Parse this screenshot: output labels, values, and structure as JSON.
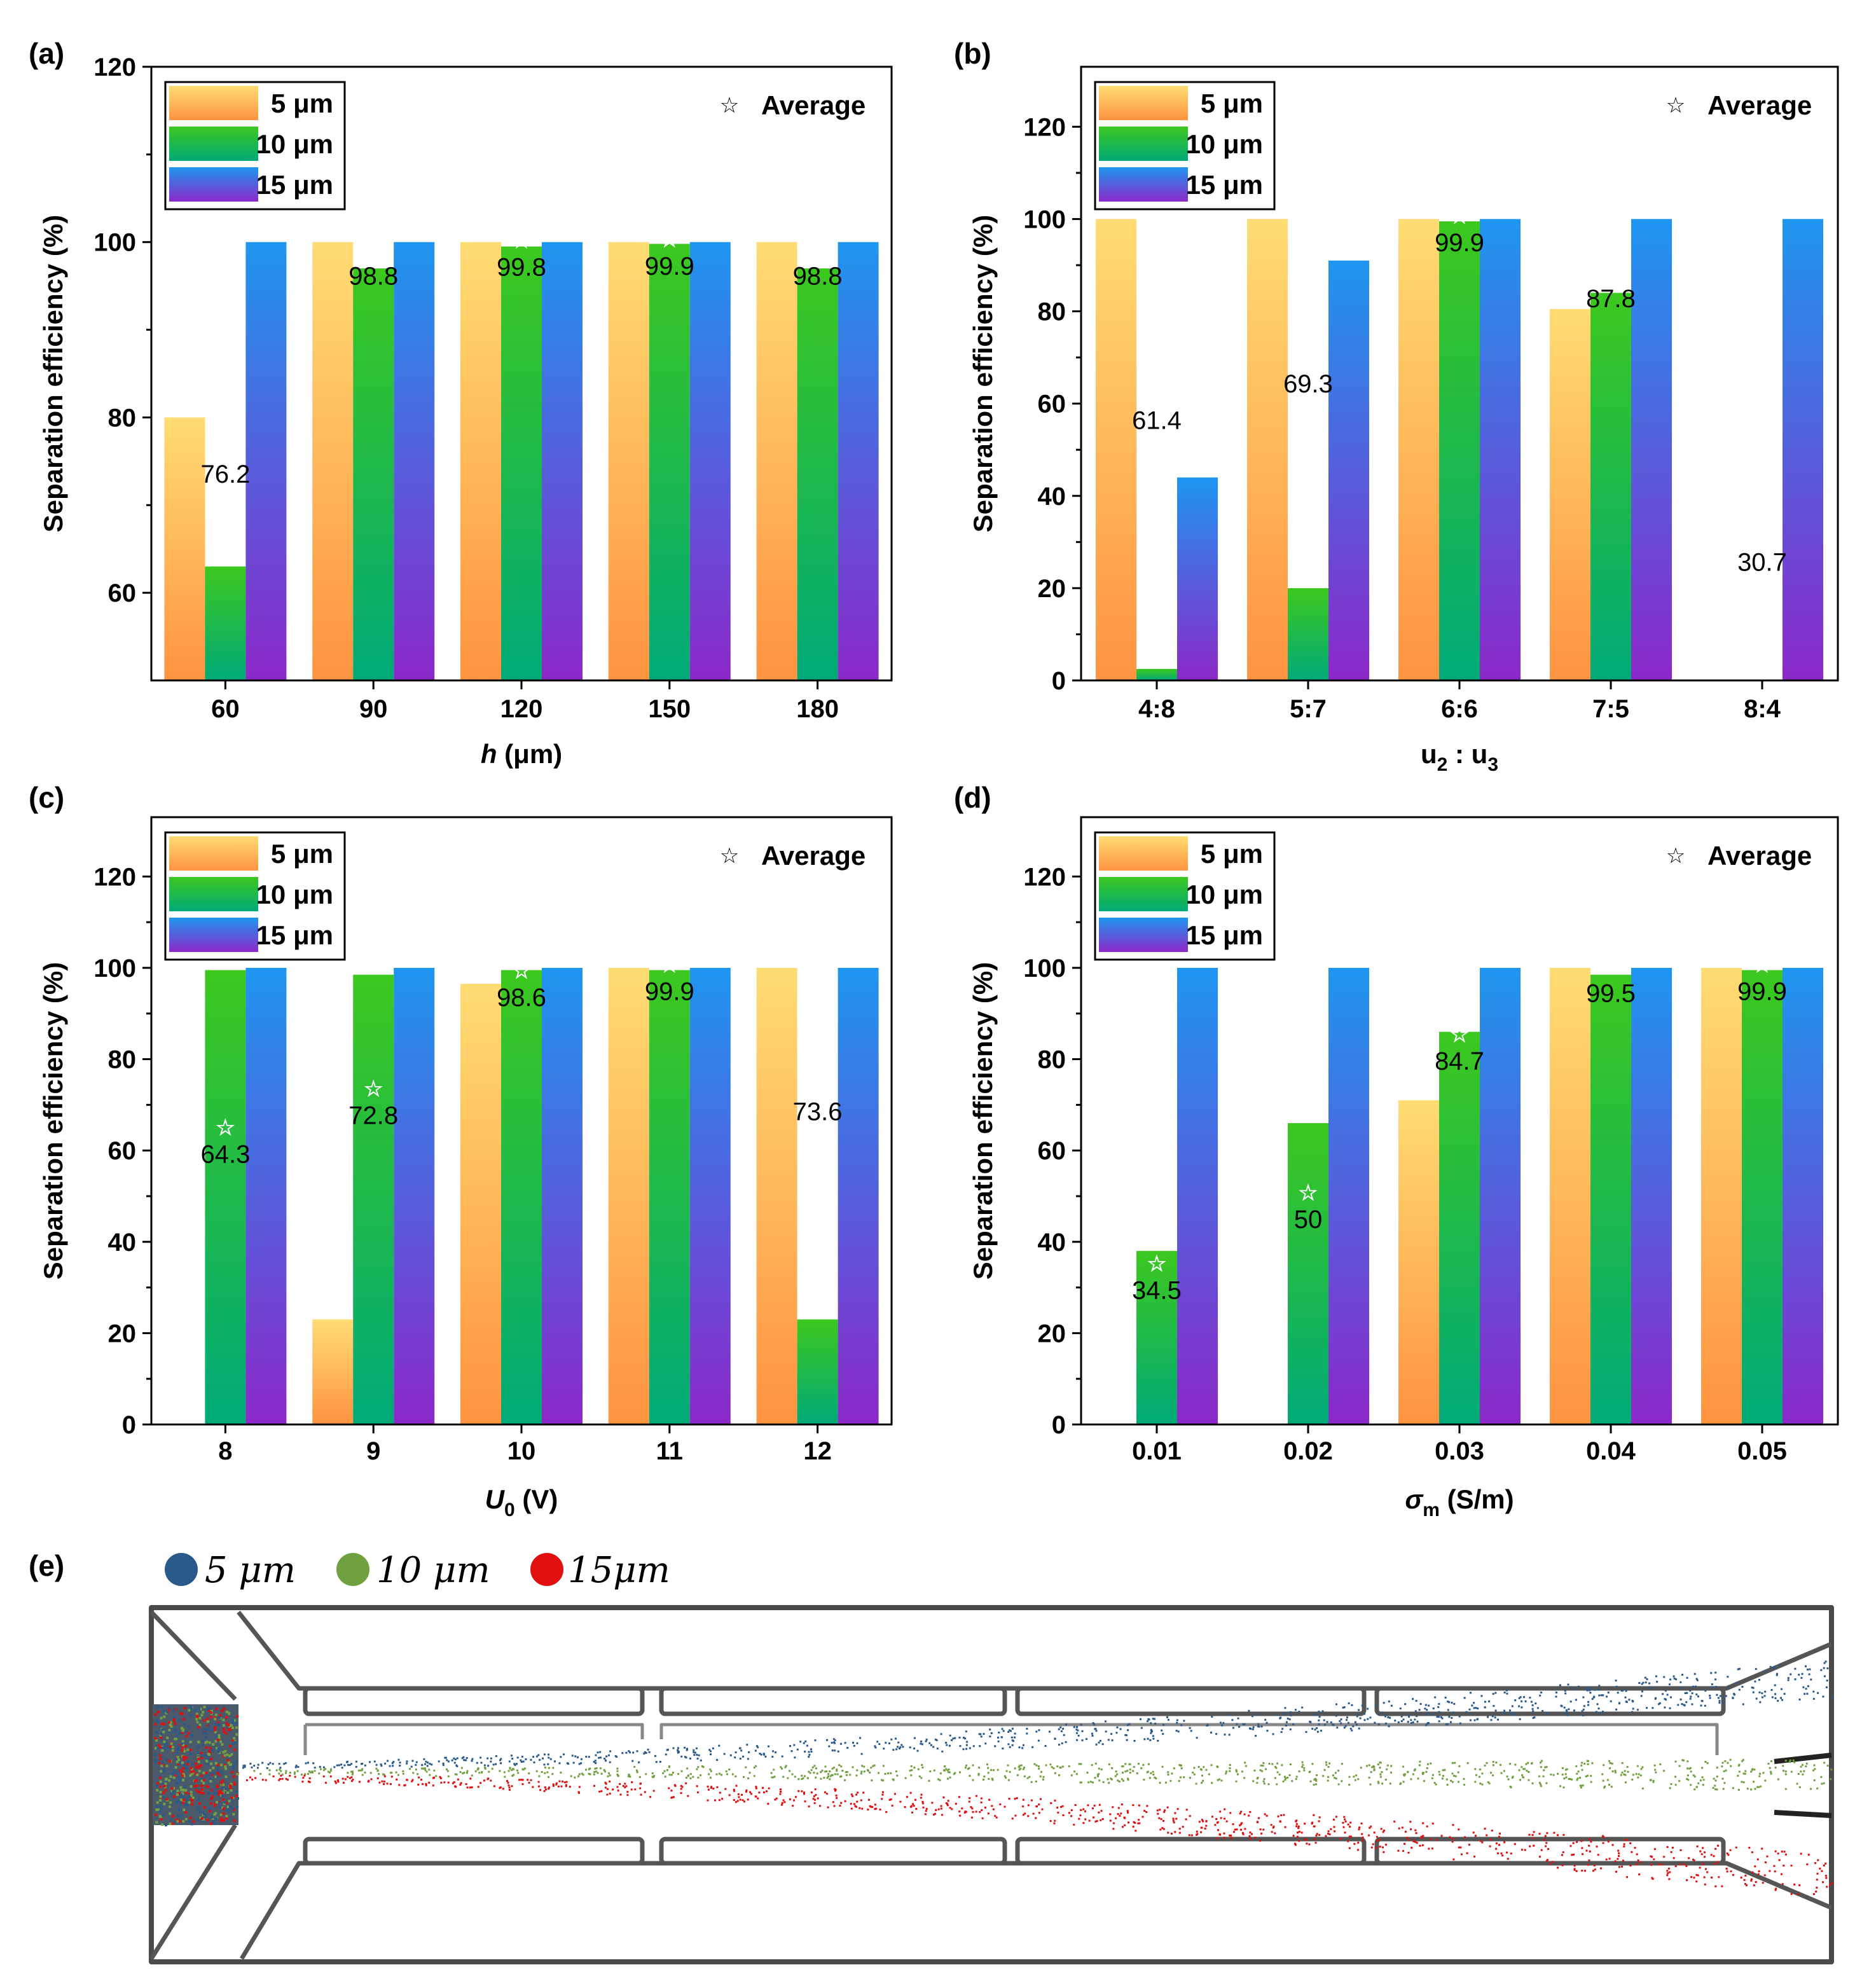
{
  "colors": {
    "bar_5um_top": "#ffdc73",
    "bar_5um_bottom": "#ff9340",
    "bar_10um_top": "#3cc81e",
    "bar_10um_bottom": "#00aa78",
    "bar_15um_top": "#1e96f0",
    "bar_15um_bottom": "#8c28c8",
    "particle_5um": "#2a5a8c",
    "particle_10um": "#70a040",
    "particle_15um": "#e01010"
  },
  "chart_data": [
    {
      "id": "a",
      "panel_label": "(a)",
      "type": "bar",
      "xlabel_italic": "h",
      "xlabel_rest": " (μm)",
      "ylabel": "Separation efficiency (%)",
      "ylim": [
        50,
        120
      ],
      "yticks": [
        60,
        80,
        100,
        120
      ],
      "categories": [
        "60",
        "90",
        "120",
        "150",
        "180"
      ],
      "series": [
        {
          "name": "5  μm",
          "values": [
            80,
            100,
            100,
            100,
            100
          ]
        },
        {
          "name": "10 μm",
          "values": [
            63,
            97,
            99.5,
            99.8,
            97
          ]
        },
        {
          "name": "15 μm",
          "values": [
            100,
            100,
            100,
            100,
            100
          ]
        }
      ],
      "average": {
        "symbol": "☆",
        "label": "Average",
        "values": [
          76.2,
          98.8,
          99.8,
          99.9,
          98.8
        ],
        "labels": [
          "76.2",
          "98.8",
          "99.8",
          "99.9",
          "98.8"
        ]
      }
    },
    {
      "id": "b",
      "panel_label": "(b)",
      "type": "bar",
      "xlabel_parts": [
        "u",
        "2",
        " : u",
        "3"
      ],
      "ylabel": "Separation efficiency (%)",
      "ylim": [
        0,
        133
      ],
      "yticks": [
        0,
        20,
        40,
        60,
        80,
        100,
        120
      ],
      "categories": [
        "4:8",
        "5:7",
        "6:6",
        "7:5",
        "8:4"
      ],
      "series": [
        {
          "name": "5  μm",
          "values": [
            100,
            100,
            100,
            80.5,
            0
          ]
        },
        {
          "name": "10 μm",
          "values": [
            2.5,
            20,
            99.5,
            84,
            0
          ]
        },
        {
          "name": "15 μm",
          "values": [
            44,
            91,
            100,
            100,
            100
          ]
        }
      ],
      "average": {
        "symbol": "☆",
        "label": "Average",
        "values": [
          61.4,
          69.3,
          99.9,
          87.8,
          30.7
        ],
        "labels": [
          "61.4",
          "69.3",
          "99.9",
          "87.8",
          "30.7"
        ]
      }
    },
    {
      "id": "c",
      "panel_label": "(c)",
      "type": "bar",
      "xlabel_parts": [
        "U",
        "0",
        " (V)"
      ],
      "ylabel": "Separation efficiency (%)",
      "ylim": [
        0,
        133
      ],
      "yticks": [
        0,
        20,
        40,
        60,
        80,
        100,
        120
      ],
      "categories": [
        "8",
        "9",
        "10",
        "11",
        "12"
      ],
      "series": [
        {
          "name": "5  μm",
          "values": [
            0,
            23,
            96.5,
            100,
            100
          ]
        },
        {
          "name": "10 μm",
          "values": [
            99.5,
            98.5,
            99.5,
            99.5,
            23
          ]
        },
        {
          "name": "15 μm",
          "values": [
            100,
            100,
            100,
            100,
            100
          ]
        }
      ],
      "average": {
        "symbol": "☆",
        "label": "Average",
        "values": [
          64.3,
          72.8,
          98.6,
          99.9,
          73.6
        ],
        "labels": [
          "64.3",
          "72.8",
          "98.6",
          "99.9",
          "73.6"
        ]
      }
    },
    {
      "id": "d",
      "panel_label": "(d)",
      "type": "bar",
      "xlabel_parts": [
        "σ",
        "m",
        " (S/m)"
      ],
      "ylabel": "Separation efficiency (%)",
      "ylim": [
        0,
        133
      ],
      "yticks": [
        0,
        20,
        40,
        60,
        80,
        100,
        120
      ],
      "categories": [
        "0.01",
        "0.02",
        "0.03",
        "0.04",
        "0.05"
      ],
      "series": [
        {
          "name": "5  μm",
          "values": [
            0,
            0,
            71,
            100,
            100
          ]
        },
        {
          "name": "10 μm",
          "values": [
            38,
            66,
            86,
            98.5,
            99.5
          ]
        },
        {
          "name": "15 μm",
          "values": [
            100,
            100,
            100,
            100,
            100
          ]
        }
      ],
      "average": {
        "symbol": "☆",
        "label": "Average",
        "values": [
          34.5,
          50,
          84.7,
          99.5,
          99.9
        ],
        "labels": [
          "34.5",
          "50",
          "84.7",
          "99.5",
          "99.9"
        ]
      }
    }
  ],
  "panel_e": {
    "panel_label": "(e)",
    "legend": [
      {
        "label": "5 μm",
        "color_key": "particle_5um"
      },
      {
        "label": "10 μm",
        "color_key": "particle_10um"
      },
      {
        "label": "15μm",
        "color_key": "particle_15um"
      }
    ]
  }
}
